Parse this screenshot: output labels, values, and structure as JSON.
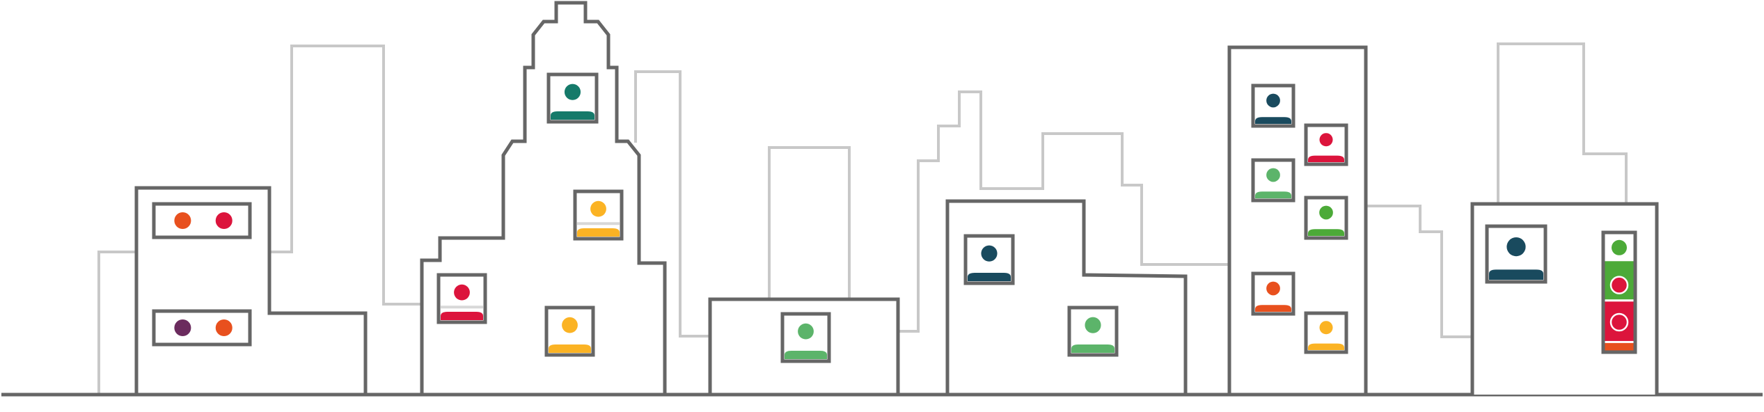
{
  "colors": {
    "front_outline": "#666666",
    "back_outline": "#c8c8c8",
    "background": "#ffffff",
    "orange": "#e8501e",
    "crimson": "#dc143c",
    "purple": "#6b2b5e",
    "teal": "#157a6a",
    "amber": "#fbb324",
    "green": "#5cb46a",
    "navy": "#194a5e",
    "leaf": "#4caa38",
    "divider": "#d8d8d8"
  },
  "scene": {
    "type": "city-skyline-with-people-in-windows",
    "window_occupants": [
      {
        "id": "w1",
        "kind": "two-dots",
        "colors": [
          "orange",
          "crimson"
        ]
      },
      {
        "id": "w2",
        "kind": "two-dots",
        "colors": [
          "purple",
          "orange"
        ]
      },
      {
        "id": "w3",
        "kind": "person",
        "color": "teal"
      },
      {
        "id": "w4",
        "kind": "person",
        "color": "amber",
        "divider": true
      },
      {
        "id": "w5",
        "kind": "person",
        "color": "crimson",
        "divider": true
      },
      {
        "id": "w6",
        "kind": "person",
        "color": "amber"
      },
      {
        "id": "w7",
        "kind": "person",
        "color": "green"
      },
      {
        "id": "w8",
        "kind": "person",
        "color": "navy"
      },
      {
        "id": "w9",
        "kind": "person",
        "color": "green"
      },
      {
        "id": "w10",
        "kind": "person",
        "color": "navy"
      },
      {
        "id": "w11",
        "kind": "person",
        "color": "crimson"
      },
      {
        "id": "w12",
        "kind": "person",
        "color": "green"
      },
      {
        "id": "w13",
        "kind": "person",
        "color": "leaf"
      },
      {
        "id": "w14",
        "kind": "person",
        "color": "orange"
      },
      {
        "id": "w15",
        "kind": "person",
        "color": "amber"
      },
      {
        "id": "w16",
        "kind": "person",
        "color": "navy"
      },
      {
        "id": "w17",
        "kind": "stacked-panel",
        "colors": [
          "leaf",
          "crimson",
          "crimson"
        ]
      }
    ]
  }
}
